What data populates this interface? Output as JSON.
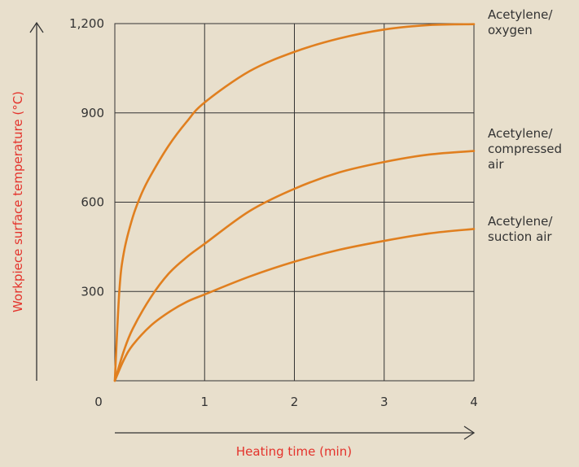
{
  "colors": {
    "background": "#e8dfcc",
    "grid": "#333333",
    "curve": "#e07f1f",
    "axis_title": "#e4322b",
    "text": "#333333"
  },
  "chart_data": {
    "type": "line",
    "title": "",
    "xlabel": "Heating time (min)",
    "ylabel": "Workpiece surface temperature (°C)",
    "xlim": [
      0,
      4
    ],
    "ylim": [
      0,
      1200
    ],
    "x_ticks": [
      {
        "value": 0,
        "label": "0"
      },
      {
        "value": 1,
        "label": "1"
      },
      {
        "value": 2,
        "label": "2"
      },
      {
        "value": 3,
        "label": "3"
      },
      {
        "value": 4,
        "label": "4"
      }
    ],
    "y_ticks": [
      {
        "value": 300,
        "label": "300"
      },
      {
        "value": 600,
        "label": "600"
      },
      {
        "value": 900,
        "label": "900"
      },
      {
        "value": 1200,
        "label": "1,200"
      }
    ],
    "grid": true,
    "series": [
      {
        "name": "Acetylene/ oxygen",
        "label_lines": [
          "Acetylene/",
          "oxygen"
        ],
        "x": [
          0,
          0.05,
          0.1,
          0.2,
          0.3,
          0.4,
          0.6,
          0.8,
          1.0,
          1.5,
          2.0,
          2.5,
          3.0,
          3.5,
          4.0
        ],
        "y": [
          0,
          300,
          430,
          550,
          630,
          690,
          790,
          870,
          935,
          1040,
          1105,
          1150,
          1180,
          1195,
          1198
        ]
      },
      {
        "name": "Acetylene/ compressed air",
        "label_lines": [
          "Acetylene/",
          "compressed",
          "air"
        ],
        "x": [
          0,
          0.1,
          0.2,
          0.4,
          0.6,
          0.8,
          1.0,
          1.5,
          2.0,
          2.5,
          3.0,
          3.5,
          4.0
        ],
        "y": [
          0,
          100,
          175,
          280,
          360,
          415,
          460,
          570,
          645,
          700,
          735,
          760,
          772
        ]
      },
      {
        "name": "Acetylene/ suction air",
        "label_lines": [
          "Acetylene/",
          "suction air"
        ],
        "x": [
          0,
          0.1,
          0.2,
          0.4,
          0.6,
          0.8,
          1.0,
          1.5,
          2.0,
          2.5,
          3.0,
          3.5,
          4.0
        ],
        "y": [
          0,
          70,
          120,
          185,
          230,
          265,
          290,
          350,
          400,
          440,
          470,
          495,
          510
        ]
      }
    ]
  }
}
